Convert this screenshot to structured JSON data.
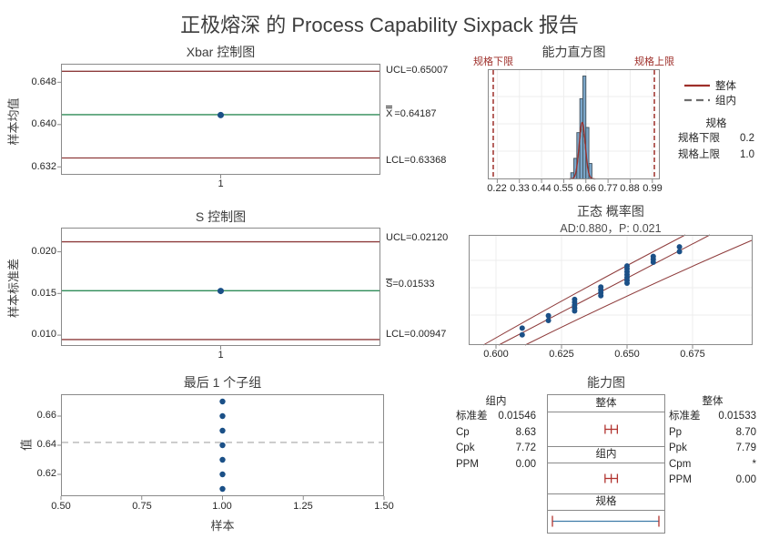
{
  "title": "正极熔深 的 Process Capability Sixpack 报告",
  "colors": {
    "title_text": "#3d3d3d",
    "text": "#262626",
    "plot_border": "#8a8a8a",
    "gridline": "#ededed",
    "limit_red": "#8e3b3b",
    "spec_red": "#9e2f2a",
    "center_green": "#2e8b57",
    "point_blue": "#1b5087",
    "bar_fill": "#7ba6c9",
    "bar_stroke": "#42525e",
    "within_gray": "#6e6e6e",
    "spec_line_blue": "#3f7ca8",
    "interval_red": "#b23430",
    "mean_dash_gray": "#a6a6a6"
  },
  "xbar": {
    "title": "Xbar 控制图",
    "y_label": "样本均值",
    "y_ticks": [
      "0.648",
      "0.640",
      "0.632"
    ],
    "x_tick": "1",
    "ucl_label": "UCL=0.65007",
    "center_symbol": "X",
    "center_value": "=0.64187",
    "lcl_label": "LCL=0.63368"
  },
  "s": {
    "title": "S 控制图",
    "y_label": "样本标准差",
    "y_ticks": [
      "0.020",
      "0.015",
      "0.010"
    ],
    "x_tick": "1",
    "ucl_label": "UCL=0.02120",
    "center_symbol": "S",
    "center_value": "=0.01533",
    "lcl_label": "LCL=0.00947"
  },
  "last": {
    "title": "最后 1 个子组",
    "y_label": "值",
    "x_label": "样本",
    "y_ticks": [
      "0.66",
      "0.64",
      "0.62"
    ],
    "x_ticks": [
      "0.50",
      "0.75",
      "1.00",
      "1.25",
      "1.50"
    ]
  },
  "hist": {
    "title": "能力直方图",
    "lsl_label": "规格下限",
    "usl_label": "规格上限",
    "x_ticks": [
      "0.22",
      "0.33",
      "0.44",
      "0.55",
      "0.66",
      "0.77",
      "0.88",
      "0.99"
    ],
    "legend": [
      {
        "label": "整体",
        "style": "solid"
      },
      {
        "label": "组内",
        "style": "dashed"
      }
    ],
    "specs": {
      "header": "规格",
      "rows": [
        {
          "label": "规格下限",
          "value": "0.2"
        },
        {
          "label": "规格上限",
          "value": "1.0"
        }
      ]
    }
  },
  "prob": {
    "title": "正态 概率图",
    "subtitle": "AD:0.880，P: 0.021",
    "x_ticks": [
      "0.600",
      "0.625",
      "0.650",
      "0.675"
    ]
  },
  "cap": {
    "title": "能力图",
    "sections": [
      "整体",
      "组内",
      "规格"
    ],
    "within": {
      "header": "组内",
      "rows": [
        {
          "label": "标准差",
          "value": "0.01546"
        },
        {
          "label": "Cp",
          "value": "8.63"
        },
        {
          "label": "Cpk",
          "value": "7.72"
        },
        {
          "label": "PPM",
          "value": "0.00"
        }
      ]
    },
    "overall": {
      "header": "整体",
      "rows": [
        {
          "label": "标准差",
          "value": "0.01533"
        },
        {
          "label": "Pp",
          "value": "8.70"
        },
        {
          "label": "Ppk",
          "value": "7.79"
        },
        {
          "label": "Cpm",
          "value": "*"
        },
        {
          "label": "PPM",
          "value": "0.00"
        }
      ]
    }
  },
  "chart_data": [
    {
      "id": "xbar_chart",
      "type": "line",
      "title": "Xbar 控制图",
      "ylabel": "样本均值",
      "ucl": 0.65007,
      "center": 0.64187,
      "lcl": 0.63368,
      "x": [
        1
      ],
      "y": [
        0.6418
      ],
      "ylim": [
        0.6305,
        0.6515
      ],
      "yticks": [
        0.648,
        0.64,
        0.632
      ]
    },
    {
      "id": "s_chart",
      "type": "line",
      "title": "S 控制图",
      "ylabel": "样本标准差",
      "ucl": 0.0212,
      "center": 0.01533,
      "lcl": 0.00947,
      "x": [
        1
      ],
      "y": [
        0.0153
      ],
      "ylim": [
        0.0087,
        0.0229
      ],
      "yticks": [
        0.02,
        0.015,
        0.01
      ]
    },
    {
      "id": "last_subgroup",
      "type": "scatter",
      "title": "最后 1 个子组",
      "xlabel": "样本",
      "ylabel": "值",
      "x": [
        1,
        1,
        1,
        1,
        1,
        1,
        1
      ],
      "y": [
        0.61,
        0.62,
        0.63,
        0.64,
        0.65,
        0.66,
        0.67
      ],
      "center": 0.6419,
      "xlim": [
        0.5,
        1.5
      ],
      "ylim": [
        0.605,
        0.675
      ],
      "xticks": [
        0.5,
        0.75,
        1.0,
        1.25,
        1.5
      ],
      "yticks": [
        0.66,
        0.64,
        0.62
      ]
    },
    {
      "id": "capability_histogram",
      "type": "bar",
      "title": "能力直方图",
      "lsl": 0.2,
      "usl": 1.0,
      "mean": 0.64187,
      "sd_overall": 0.01533,
      "sd_within": 0.01546,
      "bin_start": 0.585,
      "bin_width": 0.015,
      "bin_rel_heights": [
        0.06,
        0.2,
        0.45,
        0.78,
        1.0,
        0.5,
        0.15
      ],
      "xticks": [
        0.22,
        0.33,
        0.44,
        0.55,
        0.66,
        0.77,
        0.88,
        0.99
      ],
      "xlim": [
        0.173,
        1.027
      ]
    },
    {
      "id": "normal_probability",
      "type": "scatter",
      "title": "正态 概率图",
      "ad": 0.88,
      "p": 0.021,
      "xticks": [
        0.6,
        0.625,
        0.65,
        0.675
      ],
      "points": [
        {
          "v": 0.61,
          "t": 0.05
        },
        {
          "v": 0.61,
          "t": 0.12
        },
        {
          "v": 0.62,
          "t": 0.2
        },
        {
          "v": 0.62,
          "t": 0.25
        },
        {
          "v": 0.63,
          "t": 0.3
        },
        {
          "v": 0.63,
          "t": 0.33
        },
        {
          "v": 0.63,
          "t": 0.36
        },
        {
          "v": 0.63,
          "t": 0.39
        },
        {
          "v": 0.63,
          "t": 0.42
        },
        {
          "v": 0.64,
          "t": 0.46
        },
        {
          "v": 0.64,
          "t": 0.49
        },
        {
          "v": 0.64,
          "t": 0.52
        },
        {
          "v": 0.64,
          "t": 0.55
        },
        {
          "v": 0.65,
          "t": 0.59
        },
        {
          "v": 0.65,
          "t": 0.62
        },
        {
          "v": 0.65,
          "t": 0.65
        },
        {
          "v": 0.65,
          "t": 0.68
        },
        {
          "v": 0.65,
          "t": 0.71
        },
        {
          "v": 0.65,
          "t": 0.74
        },
        {
          "v": 0.65,
          "t": 0.77
        },
        {
          "v": 0.66,
          "t": 0.81
        },
        {
          "v": 0.66,
          "t": 0.84
        },
        {
          "v": 0.66,
          "t": 0.87
        },
        {
          "v": 0.67,
          "t": 0.92
        },
        {
          "v": 0.67,
          "t": 0.97
        }
      ]
    },
    {
      "id": "capability_plot",
      "type": "interval",
      "title": "能力图",
      "lsl": 0.2,
      "usl": 1.0,
      "mean": 0.64187,
      "within": {
        "sd": 0.01546,
        "Cp": 8.63,
        "Cpk": 7.72,
        "PPM": 0.0
      },
      "overall": {
        "sd": 0.01533,
        "Pp": 8.7,
        "Ppk": 7.79,
        "Cpm": "*",
        "PPM": 0.0
      }
    }
  ]
}
